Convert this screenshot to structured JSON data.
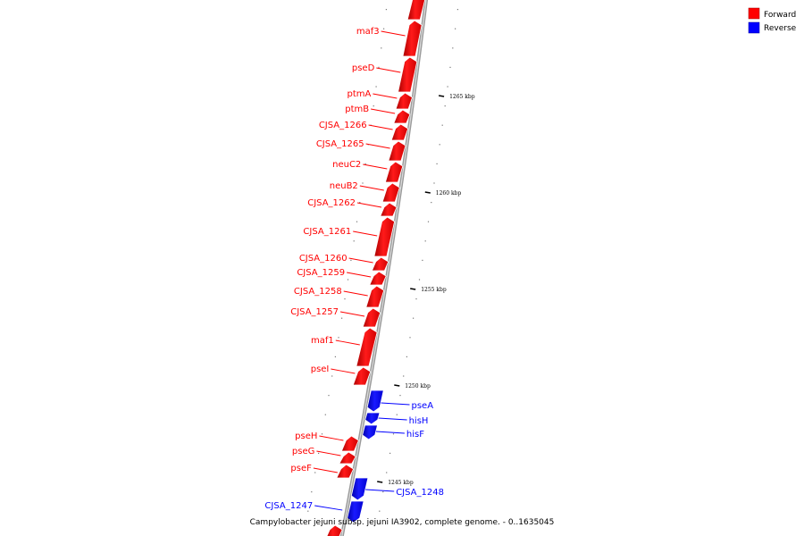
{
  "caption": "Campylobacter jejuni subsp. jejuni IA3902, complete genome. - 0..1635045",
  "legend": [
    {
      "label": "Forward",
      "color": "#ff0000"
    },
    {
      "label": "Reverse",
      "color": "#0000ff"
    }
  ],
  "colors": {
    "forward": "#ff0000",
    "reverse": "#0000ff",
    "backbone": "#888888"
  },
  "ticks": [
    "1265 kbp",
    "1260 kbp",
    "1255 kbp",
    "1250 kbp",
    "1245 kbp"
  ],
  "forward_genes": [
    "maf3",
    "pseD",
    "ptmA",
    "ptmB",
    "CJSA_1266",
    "CJSA_1265",
    "neuC2",
    "neuB2",
    "CJSA_1262",
    "CJSA_1261",
    "CJSA_1260",
    "CJSA_1259",
    "CJSA_1258",
    "CJSA_1257",
    "maf1",
    "pseI",
    "pseH",
    "pseG",
    "pseF"
  ],
  "reverse_genes": [
    "pseA",
    "hisH",
    "hisF",
    "CJSA_1248",
    "CJSA_1247"
  ]
}
